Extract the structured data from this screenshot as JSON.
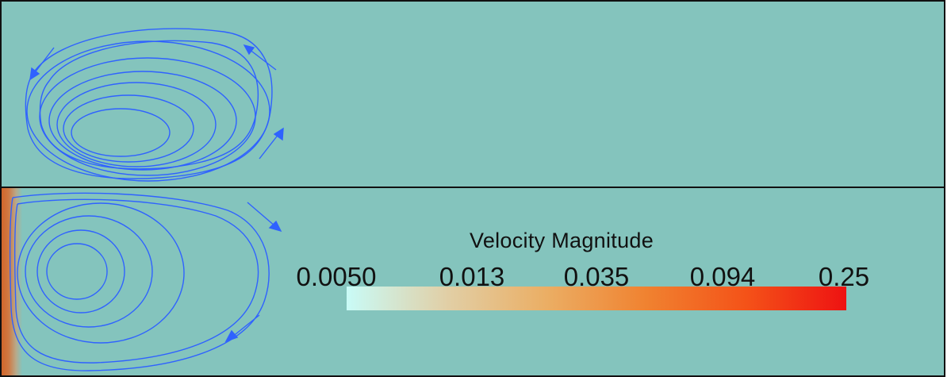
{
  "legend": {
    "title": "Velocity Magnitude",
    "ticks": [
      "0.0050",
      "0.013",
      "0.035",
      "0.094",
      "0.25"
    ],
    "gradient_colors": [
      "#c9fbf7",
      "#e1cfa6",
      "#ebae64",
      "#f08230",
      "#f45218",
      "#ee1212"
    ]
  },
  "colors": {
    "background": "#84c4bd",
    "streamline": "#2f62ff",
    "border": "#111111"
  },
  "panels": [
    {
      "name": "top-panel",
      "vortex_direction": "counter-clockwise"
    },
    {
      "name": "bottom-panel",
      "vortex_direction": "clockwise"
    }
  ]
}
